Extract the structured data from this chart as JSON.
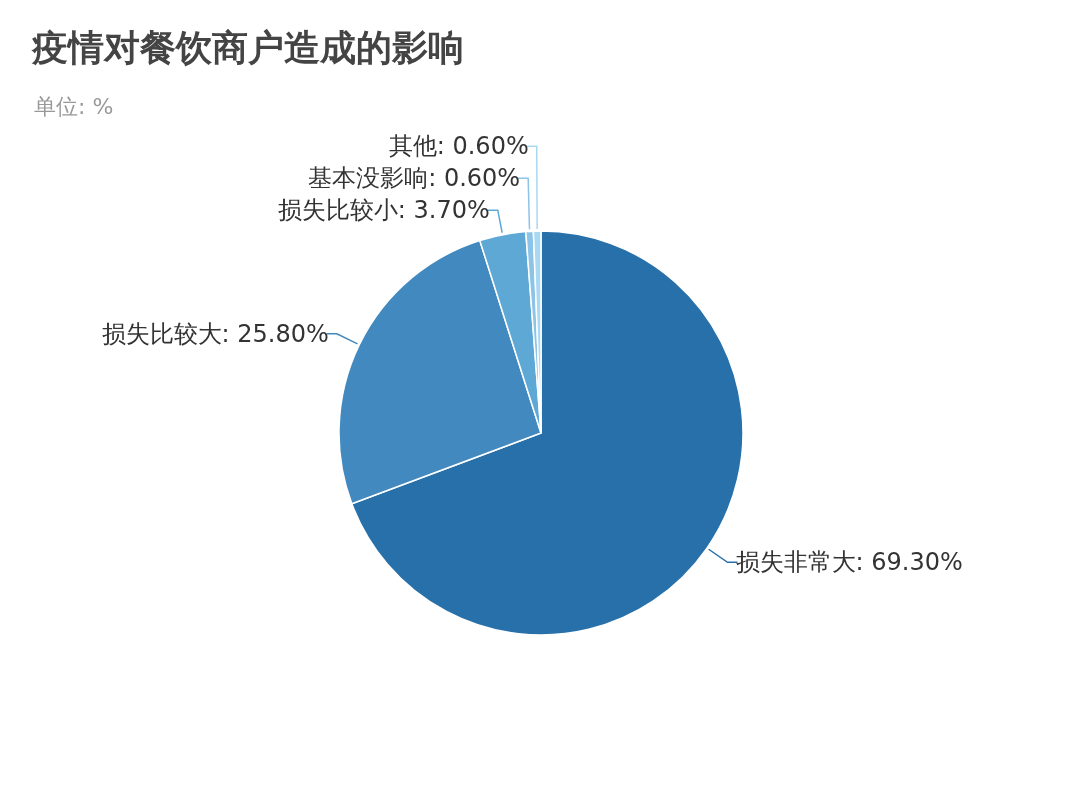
{
  "chart_data": {
    "type": "pie",
    "title": "疫情对餐饮商户造成的影响",
    "subtitle": "单位: %",
    "categories": [
      "损失非常大",
      "损失比较大",
      "损失比较小",
      "基本没影响",
      "其他"
    ],
    "values": [
      69.3,
      25.8,
      3.7,
      0.6,
      0.6
    ],
    "colors": [
      "#2870aa",
      "#4289c0",
      "#5ea8d6",
      "#8cc4e8",
      "#a9d8f2"
    ],
    "value_labels": [
      "69.30%",
      "25.80%",
      "3.70%",
      "0.60%",
      "0.60%"
    ]
  }
}
